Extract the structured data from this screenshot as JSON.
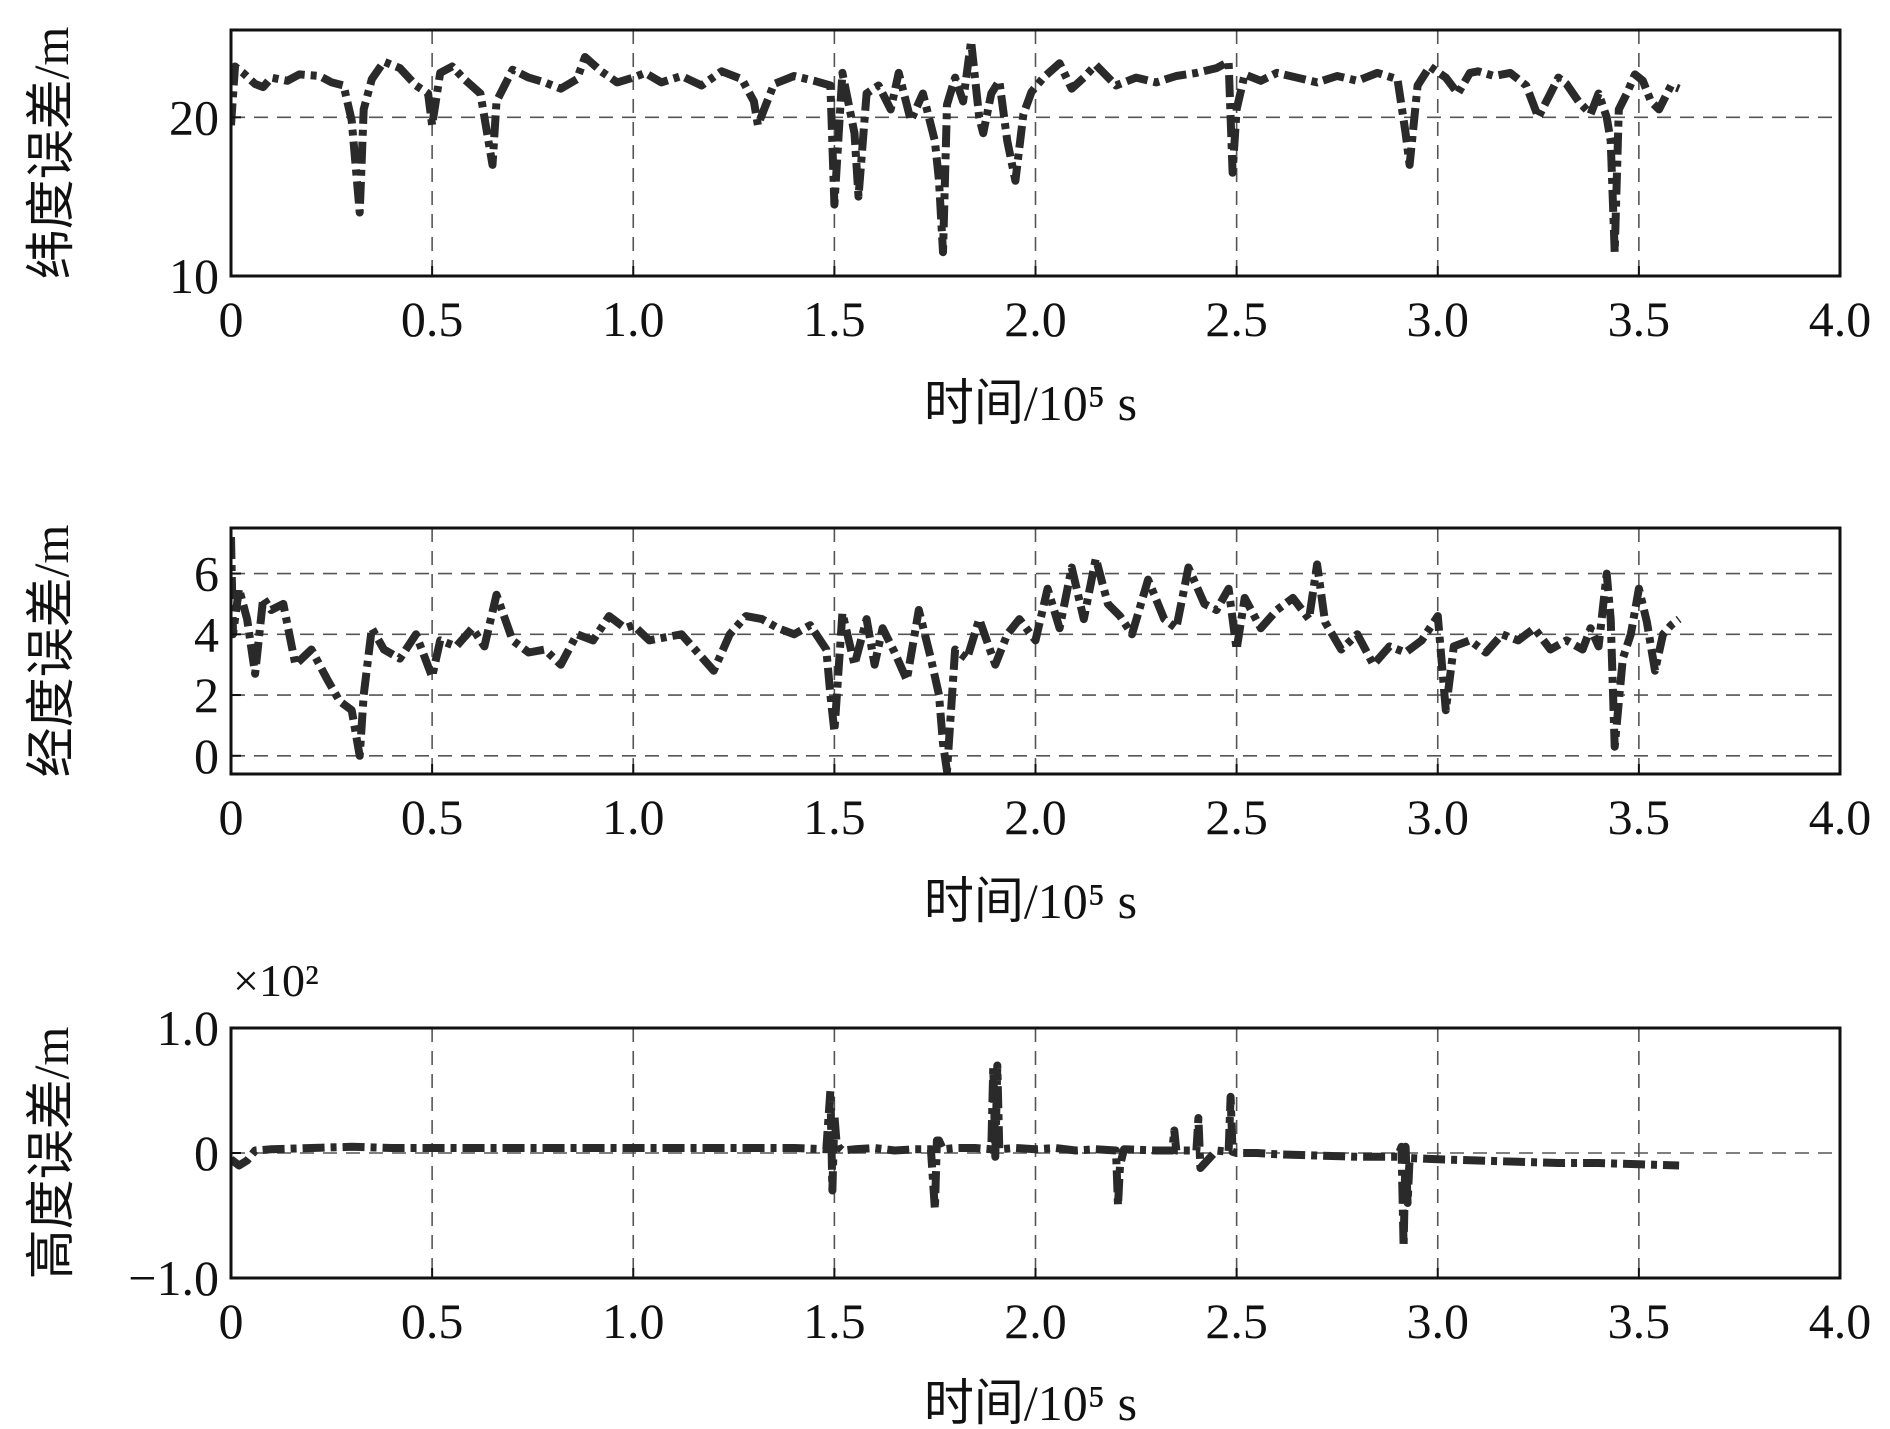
{
  "chart_data": [
    {
      "type": "line",
      "ylabel": "纬度误差/m",
      "xlabel": "时间/10⁵ s",
      "xlim": [
        0,
        4.0
      ],
      "ylim": [
        10,
        25.5
      ],
      "xticks": [
        0,
        0.5,
        1.0,
        1.5,
        2.0,
        2.5,
        3.0,
        3.5,
        4.0
      ],
      "xtick_labels": [
        "0",
        "0.5",
        "1.0",
        "1.5",
        "2.0",
        "2.5",
        "3.0",
        "3.5",
        "4.0"
      ],
      "yticks": [
        10,
        20
      ],
      "ytick_labels": [
        "10",
        "20"
      ],
      "grid": true,
      "series": [
        {
          "x": [
            0,
            0.01,
            0.03,
            0.06,
            0.08,
            0.1,
            0.14,
            0.17,
            0.22,
            0.25,
            0.28,
            0.3,
            0.32,
            0.33,
            0.35,
            0.38,
            0.42,
            0.46,
            0.49,
            0.5,
            0.52,
            0.55,
            0.58,
            0.62,
            0.65,
            0.66,
            0.7,
            0.74,
            0.78,
            0.82,
            0.86,
            0.88,
            0.92,
            0.96,
            1.0,
            1.03,
            1.07,
            1.12,
            1.17,
            1.22,
            1.27,
            1.3,
            1.31,
            1.35,
            1.4,
            1.45,
            1.49,
            1.5,
            1.52,
            1.55,
            1.56,
            1.58,
            1.61,
            1.64,
            1.66,
            1.69,
            1.72,
            1.75,
            1.76,
            1.77,
            1.78,
            1.8,
            1.82,
            1.84,
            1.86,
            1.87,
            1.89,
            1.91,
            1.93,
            1.95,
            1.97,
            1.99,
            2.02,
            2.06,
            2.09,
            2.12,
            2.15,
            2.2,
            2.25,
            2.3,
            2.35,
            2.4,
            2.45,
            2.48,
            2.49,
            2.5,
            2.52,
            2.56,
            2.6,
            2.65,
            2.7,
            2.75,
            2.8,
            2.85,
            2.9,
            2.92,
            2.93,
            2.95,
            2.98,
            3.02,
            3.05,
            3.08,
            3.1,
            3.14,
            3.18,
            3.22,
            3.25,
            3.28,
            3.3,
            3.32,
            3.35,
            3.38,
            3.4,
            3.42,
            3.43,
            3.44,
            3.45,
            3.47,
            3.49,
            3.51,
            3.53,
            3.55,
            3.58,
            3.6
          ],
          "y": [
            19.5,
            23.2,
            22.8,
            22.1,
            21.9,
            22.5,
            22.3,
            22.7,
            22.6,
            22.2,
            22.0,
            19.8,
            14.0,
            20.5,
            22.4,
            23.5,
            23.1,
            22.0,
            21.5,
            19.5,
            22.8,
            23.2,
            22.4,
            21.5,
            17.0,
            21.0,
            23.0,
            22.5,
            22.2,
            21.8,
            22.4,
            23.8,
            22.9,
            22.2,
            22.5,
            22.8,
            22.2,
            22.6,
            22.0,
            22.9,
            22.4,
            21.0,
            19.5,
            22.1,
            22.6,
            22.3,
            22.0,
            14.5,
            22.8,
            19.0,
            15.0,
            21.5,
            22.0,
            20.5,
            22.8,
            19.8,
            21.5,
            18.5,
            16.0,
            11.5,
            20.8,
            22.5,
            21.0,
            24.8,
            20.0,
            19.0,
            21.5,
            22.3,
            18.5,
            16.0,
            20.2,
            21.6,
            22.5,
            23.4,
            21.8,
            22.5,
            23.3,
            22.0,
            22.5,
            22.2,
            22.6,
            22.8,
            23.1,
            23.5,
            16.5,
            20.5,
            22.7,
            22.3,
            22.8,
            22.5,
            22.2,
            22.6,
            22.3,
            22.8,
            22.4,
            19.0,
            17.0,
            22.0,
            23.2,
            22.5,
            21.5,
            22.8,
            22.9,
            22.6,
            22.8,
            22.0,
            20.0,
            21.5,
            22.5,
            22.1,
            21.0,
            20.2,
            21.5,
            20.0,
            18.5,
            11.5,
            20.5,
            21.5,
            22.7,
            22.3,
            21.0,
            20.5,
            22.0,
            21.8
          ],
          "color": "#2a2a2a"
        }
      ]
    },
    {
      "type": "line",
      "ylabel": "经度误差/m",
      "xlabel": "时间/10⁵ s",
      "xlim": [
        0,
        4.0
      ],
      "ylim": [
        -0.6,
        7.5
      ],
      "xticks": [
        0,
        0.5,
        1.0,
        1.5,
        2.0,
        2.5,
        3.0,
        3.5,
        4.0
      ],
      "xtick_labels": [
        "0",
        "0.5",
        "1.0",
        "1.5",
        "2.0",
        "2.5",
        "3.0",
        "3.5",
        "4.0"
      ],
      "yticks": [
        0,
        2,
        4,
        6
      ],
      "ytick_labels": [
        "0",
        "2",
        "4",
        "6"
      ],
      "grid": true,
      "series": [
        {
          "x": [
            0,
            0.005,
            0.02,
            0.04,
            0.06,
            0.08,
            0.1,
            0.13,
            0.16,
            0.2,
            0.24,
            0.27,
            0.3,
            0.32,
            0.33,
            0.35,
            0.38,
            0.42,
            0.46,
            0.5,
            0.52,
            0.56,
            0.6,
            0.63,
            0.66,
            0.7,
            0.74,
            0.78,
            0.82,
            0.86,
            0.9,
            0.94,
            0.98,
            1.0,
            1.04,
            1.08,
            1.12,
            1.16,
            1.2,
            1.24,
            1.28,
            1.32,
            1.36,
            1.4,
            1.44,
            1.48,
            1.49,
            1.5,
            1.52,
            1.55,
            1.58,
            1.6,
            1.62,
            1.65,
            1.68,
            1.71,
            1.74,
            1.76,
            1.77,
            1.78,
            1.8,
            1.83,
            1.86,
            1.9,
            1.93,
            1.96,
            2.0,
            2.03,
            2.06,
            2.09,
            2.12,
            2.15,
            2.18,
            2.21,
            2.24,
            2.28,
            2.32,
            2.35,
            2.38,
            2.42,
            2.45,
            2.48,
            2.5,
            2.52,
            2.56,
            2.6,
            2.64,
            2.68,
            2.7,
            2.72,
            2.76,
            2.8,
            2.84,
            2.88,
            2.92,
            2.96,
            3.0,
            3.02,
            3.04,
            3.08,
            3.12,
            3.16,
            3.2,
            3.24,
            3.28,
            3.32,
            3.36,
            3.38,
            3.4,
            3.42,
            3.43,
            3.44,
            3.46,
            3.48,
            3.5,
            3.52,
            3.54,
            3.56,
            3.58,
            3.6
          ],
          "y": [
            7.2,
            4.0,
            5.5,
            4.5,
            2.7,
            5.2,
            4.8,
            5.0,
            3.0,
            3.5,
            2.5,
            1.8,
            1.5,
            0.0,
            2.0,
            4.2,
            3.5,
            3.2,
            4.0,
            2.6,
            3.8,
            3.6,
            4.2,
            3.6,
            5.3,
            3.8,
            3.4,
            3.5,
            3.0,
            4.0,
            3.8,
            4.6,
            4.2,
            4.3,
            3.8,
            3.9,
            4.0,
            3.4,
            2.8,
            4.0,
            4.6,
            4.5,
            4.2,
            4.0,
            4.3,
            3.5,
            2.0,
            0.8,
            4.7,
            3.0,
            4.5,
            3.0,
            4.2,
            3.4,
            2.5,
            4.8,
            3.2,
            2.0,
            0.4,
            -0.5,
            3.5,
            3.2,
            4.5,
            3.0,
            4.0,
            4.5,
            3.8,
            5.5,
            4.2,
            6.2,
            4.5,
            6.5,
            5.0,
            4.6,
            4.0,
            5.8,
            4.5,
            4.2,
            6.2,
            5.0,
            4.8,
            5.5,
            3.5,
            5.2,
            4.2,
            4.8,
            5.2,
            4.5,
            6.3,
            4.4,
            3.5,
            4.0,
            3.0,
            3.6,
            3.4,
            3.8,
            4.6,
            1.5,
            3.6,
            3.8,
            3.4,
            4.0,
            3.8,
            4.2,
            3.5,
            3.8,
            3.5,
            4.2,
            3.6,
            6.0,
            4.5,
            0.3,
            3.2,
            4.0,
            5.5,
            4.4,
            2.8,
            4.0,
            4.3,
            4.5
          ],
          "color": "#2a2a2a"
        }
      ]
    },
    {
      "type": "line",
      "ylabel": "高度误差/m",
      "xlabel": "时间/10⁵ s",
      "multiplier": "×10²",
      "xlim": [
        0,
        4.0
      ],
      "ylim": [
        -1.0,
        1.0
      ],
      "xticks": [
        0,
        0.5,
        1.0,
        1.5,
        2.0,
        2.5,
        3.0,
        3.5,
        4.0
      ],
      "xtick_labels": [
        "0",
        "0.5",
        "1.0",
        "1.5",
        "2.0",
        "2.5",
        "3.0",
        "3.5",
        "4.0"
      ],
      "yticks": [
        -1.0,
        0,
        1.0
      ],
      "ytick_labels": [
        "−1.0",
        "0",
        "1.0"
      ],
      "grid": true,
      "series": [
        {
          "x": [
            0,
            0.02,
            0.04,
            0.06,
            0.1,
            0.2,
            0.3,
            0.4,
            0.5,
            0.6,
            0.7,
            0.8,
            0.9,
            1.0,
            1.1,
            1.2,
            1.3,
            1.4,
            1.48,
            1.49,
            1.495,
            1.5,
            1.505,
            1.51,
            1.52,
            1.55,
            1.6,
            1.65,
            1.7,
            1.74,
            1.75,
            1.755,
            1.76,
            1.77,
            1.8,
            1.85,
            1.89,
            1.895,
            1.9,
            1.905,
            1.91,
            1.95,
            2.0,
            2.05,
            2.1,
            2.15,
            2.2,
            2.205,
            2.21,
            2.22,
            2.3,
            2.34,
            2.345,
            2.35,
            2.4,
            2.405,
            2.41,
            2.45,
            2.48,
            2.485,
            2.49,
            2.5,
            2.55,
            2.6,
            2.7,
            2.8,
            2.9,
            2.91,
            2.915,
            2.92,
            2.925,
            2.93,
            3.0,
            3.1,
            3.2,
            3.3,
            3.4,
            3.5,
            3.6
          ],
          "y": [
            -0.05,
            -0.1,
            -0.06,
            0.02,
            0.03,
            0.04,
            0.05,
            0.04,
            0.04,
            0.04,
            0.04,
            0.04,
            0.04,
            0.04,
            0.04,
            0.04,
            0.04,
            0.04,
            0.03,
            0.5,
            -0.3,
            0.3,
            0.1,
            0.05,
            0.02,
            0.03,
            0.04,
            0.02,
            0.03,
            0.03,
            -0.45,
            0.1,
            0.1,
            0.03,
            0.04,
            0.04,
            0.03,
            0.7,
            -0.03,
            0.7,
            0.03,
            0.04,
            0.03,
            0.04,
            0.02,
            0.03,
            0.02,
            -0.42,
            -0.1,
            0.03,
            0.02,
            0.02,
            0.18,
            0.02,
            0.02,
            0.28,
            -0.12,
            0.02,
            0.01,
            0.45,
            0.01,
            0.0,
            0.0,
            -0.01,
            -0.02,
            -0.03,
            -0.03,
            0.05,
            -0.75,
            0.05,
            -0.4,
            -0.04,
            -0.05,
            -0.06,
            -0.07,
            -0.08,
            -0.08,
            -0.09,
            -0.1
          ],
          "color": "#2a2a2a"
        }
      ]
    }
  ]
}
